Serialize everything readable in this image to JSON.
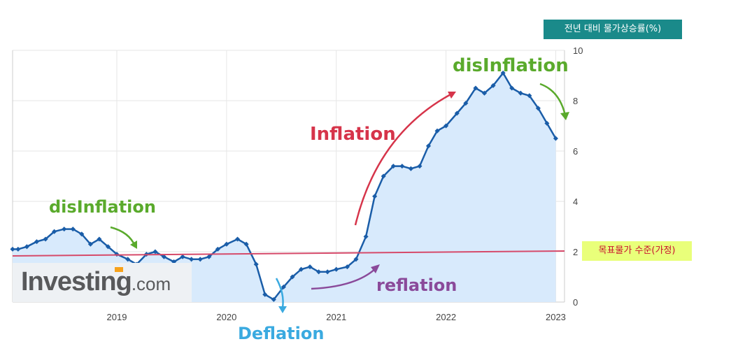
{
  "y_axis_title": "전년 대비 물가상승률(%)",
  "target_label": "목표물가 수준(가정)",
  "watermark": {
    "main": "Investing",
    "suffix": ".com"
  },
  "colors": {
    "line": "#1a5da8",
    "fill": "#d8eafc",
    "target": "#d64a6a",
    "green": "#5aaa2c",
    "red": "#d6344a",
    "purple": "#8a4a9a",
    "blue": "#3aaae0",
    "grid": "#e6e6e6"
  },
  "annotations": {
    "disinflation_1": "disInflation",
    "disinflation_2": "disInflation",
    "inflation": "Inflation",
    "deflation": "Deflation",
    "reflation": "reflation"
  },
  "chart_data": {
    "type": "area",
    "title": "",
    "ylabel": "전년 대비 물가상승률(%)",
    "xlabel": "",
    "ylim": [
      0,
      10
    ],
    "yticks": [
      0,
      2,
      4,
      6,
      8,
      10
    ],
    "xlim": [
      2018.05,
      2023.08
    ],
    "xticks": [
      {
        "value": 2019,
        "label": "2019"
      },
      {
        "value": 2020,
        "label": "2020"
      },
      {
        "value": 2021,
        "label": "2021"
      },
      {
        "value": 2022,
        "label": "2022"
      },
      {
        "value": 2023,
        "label": "2023"
      }
    ],
    "grid": true,
    "target_level": 2,
    "series": [
      {
        "name": "전년 대비 물가상승률(%)",
        "x": [
          2018.05,
          2018.1,
          2018.18,
          2018.27,
          2018.35,
          2018.43,
          2018.52,
          2018.6,
          2018.68,
          2018.76,
          2018.84,
          2018.92,
          2019.0,
          2019.1,
          2019.18,
          2019.27,
          2019.35,
          2019.43,
          2019.52,
          2019.6,
          2019.68,
          2019.76,
          2019.84,
          2019.92,
          2020.0,
          2020.1,
          2020.18,
          2020.27,
          2020.35,
          2020.43,
          2020.52,
          2020.6,
          2020.68,
          2020.76,
          2020.84,
          2020.92,
          2021.0,
          2021.1,
          2021.18,
          2021.27,
          2021.35,
          2021.43,
          2021.52,
          2021.6,
          2021.68,
          2021.76,
          2021.84,
          2021.92,
          2022.0,
          2022.1,
          2022.18,
          2022.27,
          2022.35,
          2022.43,
          2022.52,
          2022.6,
          2022.68,
          2022.76,
          2022.84,
          2022.92,
          2023.0
        ],
        "values": [
          2.1,
          2.1,
          2.2,
          2.4,
          2.5,
          2.8,
          2.9,
          2.9,
          2.7,
          2.3,
          2.5,
          2.2,
          1.9,
          1.7,
          1.5,
          1.9,
          2.0,
          1.8,
          1.6,
          1.8,
          1.7,
          1.7,
          1.8,
          2.1,
          2.3,
          2.5,
          2.3,
          1.5,
          0.3,
          0.1,
          0.6,
          1.0,
          1.3,
          1.4,
          1.2,
          1.2,
          1.3,
          1.4,
          1.7,
          2.6,
          4.2,
          5.0,
          5.4,
          5.4,
          5.3,
          5.4,
          6.2,
          6.8,
          7.0,
          7.5,
          7.9,
          8.5,
          8.3,
          8.6,
          9.1,
          8.5,
          8.3,
          8.2,
          7.7,
          7.1,
          6.5
        ]
      }
    ]
  }
}
